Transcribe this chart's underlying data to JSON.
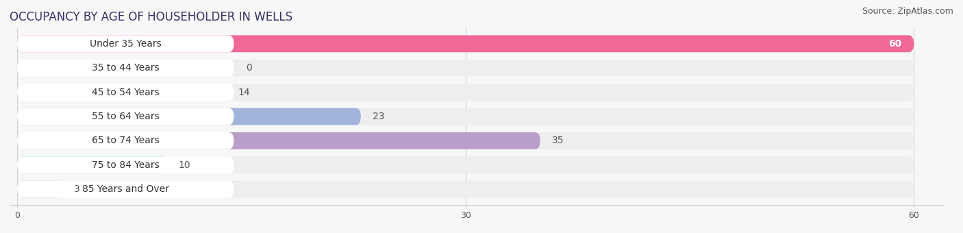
{
  "title": "OCCUPANCY BY AGE OF HOUSEHOLDER IN WELLS",
  "source": "Source: ZipAtlas.com",
  "categories": [
    "Under 35 Years",
    "35 to 44 Years",
    "45 to 54 Years",
    "55 to 64 Years",
    "65 to 74 Years",
    "75 to 84 Years",
    "85 Years and Over"
  ],
  "values": [
    60,
    0,
    14,
    23,
    35,
    10,
    3
  ],
  "bar_colors": [
    "#F26898",
    "#F5C08A",
    "#EDA090",
    "#A0B4DC",
    "#B89EC8",
    "#72C8B8",
    "#B0AADC"
  ],
  "xlim_data": 60,
  "xticks": [
    0,
    30,
    60
  ],
  "background_color": "#f7f7f7",
  "title_fontsize": 12,
  "source_fontsize": 9,
  "label_fontsize": 10,
  "value_fontsize": 10
}
